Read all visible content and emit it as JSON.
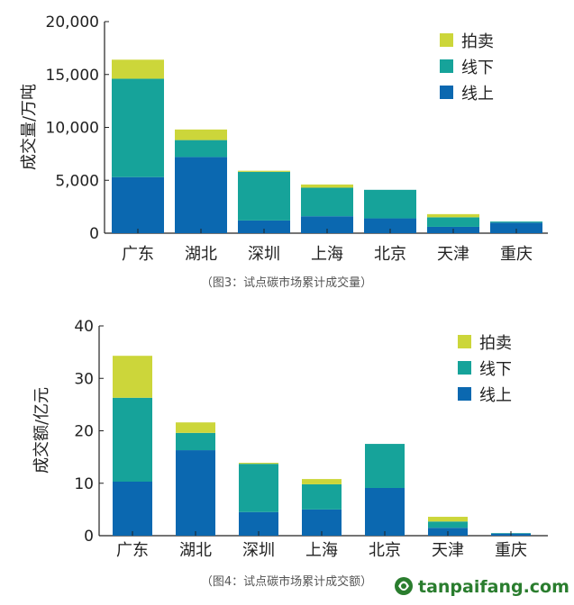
{
  "colors": {
    "auction": "#ccd63a",
    "offline": "#16a39a",
    "online": "#0b68b0",
    "axis": "#222222",
    "brand": "#2a7d2e"
  },
  "chart_data": [
    {
      "type": "bar",
      "stacked": true,
      "title": "",
      "xlabel": "",
      "ylabel": "成交量/万吨",
      "ylim": [
        0,
        20000
      ],
      "yticks": [
        "0",
        "5,000",
        "10,000",
        "15,000",
        "20,000"
      ],
      "ytick_values": [
        0,
        5000,
        10000,
        15000,
        20000
      ],
      "categories": [
        "广东",
        "湖北",
        "深圳",
        "上海",
        "北京",
        "天津",
        "重庆"
      ],
      "series": [
        {
          "name": "线上",
          "values": [
            5300,
            7200,
            1200,
            1600,
            1400,
            600,
            1000
          ]
        },
        {
          "name": "线下",
          "values": [
            9300,
            1600,
            4600,
            2700,
            2700,
            900,
            100
          ]
        },
        {
          "name": "拍卖",
          "values": [
            1800,
            1000,
            100,
            300,
            0,
            300,
            0
          ]
        }
      ],
      "legend": [
        "拍卖",
        "线下",
        "线上"
      ],
      "legend_position": "top-right",
      "caption": "（图3：试点碳市场累计成交量）"
    },
    {
      "type": "bar",
      "stacked": true,
      "title": "",
      "xlabel": "",
      "ylabel": "成交额/亿元",
      "ylim": [
        0,
        40
      ],
      "yticks": [
        "0",
        "10",
        "20",
        "30",
        "40"
      ],
      "ytick_values": [
        0,
        10,
        20,
        30,
        40
      ],
      "categories": [
        "广东",
        "湖北",
        "深圳",
        "上海",
        "北京",
        "天津",
        "重庆"
      ],
      "series": [
        {
          "name": "线上",
          "values": [
            10.3,
            16.3,
            4.5,
            5.0,
            9.1,
            1.5,
            0.4
          ]
        },
        {
          "name": "线下",
          "values": [
            16.0,
            3.3,
            9.2,
            4.8,
            8.4,
            1.2,
            0.1
          ]
        },
        {
          "name": "拍卖",
          "values": [
            8.0,
            2.0,
            0.2,
            1.0,
            0.0,
            0.9,
            0.0
          ]
        }
      ],
      "legend": [
        "拍卖",
        "线下",
        "线上"
      ],
      "legend_position": "top-right",
      "caption": "（图4：试点碳市场累计成交额）"
    }
  ],
  "watermark": {
    "icon": "tanpaifang-logo-icon",
    "text": "tanpaifang.com"
  }
}
